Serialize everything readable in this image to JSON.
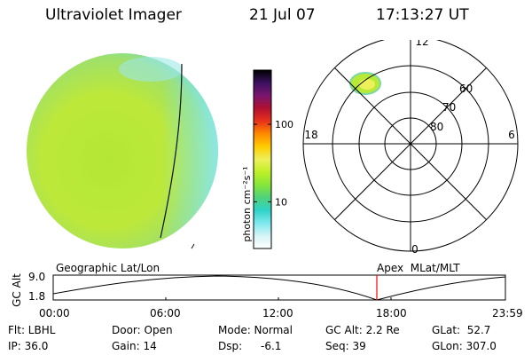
{
  "header": {
    "title": "Ultraviolet Imager",
    "date": "21 Jul 07",
    "time": "17:13:27 UT"
  },
  "colorbar": {
    "label": "photon cm⁻²s⁻¹",
    "ticks": [
      {
        "label": "100",
        "value": 100
      },
      {
        "label": "10",
        "value": 10
      }
    ],
    "range": [
      2.5,
      500
    ],
    "scale": "log",
    "colors": [
      "#ffffff",
      "#d6f4f6",
      "#7ee8ee",
      "#2fd3c8",
      "#4fd27a",
      "#86e63a",
      "#bff028",
      "#eef05a",
      "#ffcc00",
      "#ff8a00",
      "#e8321c",
      "#b01030",
      "#7a1670",
      "#3a1060",
      "#000000"
    ]
  },
  "polar": {
    "lat_labels": [
      "80",
      "70",
      "60"
    ],
    "mlt_labels": {
      "top": "12",
      "left": "18",
      "right": "6",
      "bottom": "0"
    }
  },
  "timeline": {
    "y_label": "GC Alt",
    "ticks_y": [
      "9.0",
      "1.8"
    ],
    "left_title": "Geographic Lat/Lon",
    "right_title": "Apex  MLat/MLT",
    "time_labels": [
      "00:00",
      "06:00",
      "12:00",
      "18:00",
      "23:59"
    ],
    "cursor_time": "17:13",
    "cursor_color": "#ff0000"
  },
  "info": {
    "col1": [
      "Flt: LBHL",
      "IP: 36.0"
    ],
    "col2": [
      "Door: Open",
      "Gain: 14"
    ],
    "col3_row1": "Mode: Normal",
    "col3_row2_label": "Dsp:",
    "col3_row2_value": "-6.1",
    "col4": [
      "GC Alt: 2.2 Re",
      "Seq: 39"
    ],
    "col5": [
      "GLat:  52.7",
      "GLon: 307.0"
    ]
  }
}
